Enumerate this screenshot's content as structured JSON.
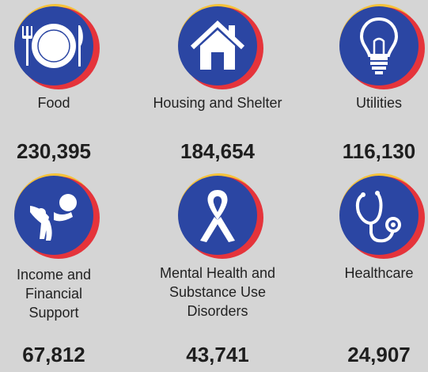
{
  "items": [
    {
      "label": "Food",
      "value": "230,395",
      "icon": "plate-fork-knife-icon"
    },
    {
      "label": "Housing and Shelter",
      "value": "184,654",
      "icon": "house-icon"
    },
    {
      "label": "Utilities",
      "value": "116,130",
      "icon": "lightbulb-icon"
    },
    {
      "label_lines": [
        "Income and",
        "Financial",
        "Support"
      ],
      "value": "67,812",
      "icon": "person-reaching-icon"
    },
    {
      "label_lines": [
        "Mental Health and",
        "Substance Use",
        "Disorders"
      ],
      "value": "43,741",
      "icon": "awareness-ribbon-icon"
    },
    {
      "label": "Healthcare",
      "value": "24,907",
      "icon": "stethoscope-icon"
    }
  ],
  "colors": {
    "background": "#d5d5d5",
    "icon_blue": "#2b46a3",
    "accent_red": "#e5343b",
    "accent_yellow": "#f6c23a"
  }
}
